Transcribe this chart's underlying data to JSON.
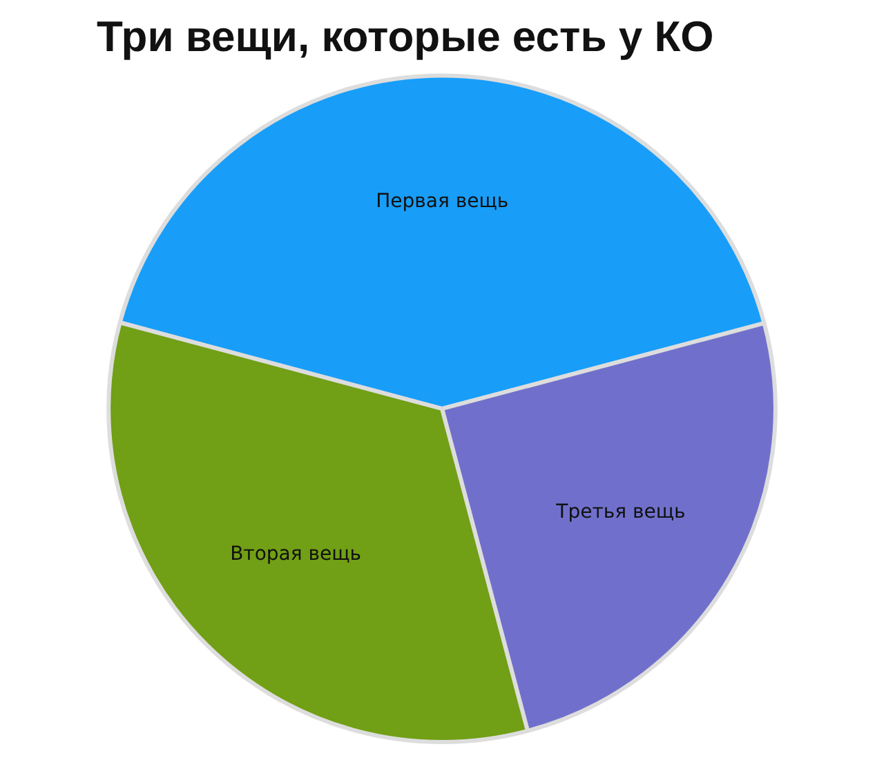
{
  "chart_data": {
    "type": "pie",
    "title": "Три вещи, которые есть у КО",
    "categories": [
      "Первая вещь",
      "Третья вещь",
      "Вторая вещь"
    ],
    "values": [
      41.7,
      25,
      33.3
    ],
    "colors": [
      "#189ef9",
      "#7070cc",
      "#719f15"
    ],
    "legend": false
  }
}
